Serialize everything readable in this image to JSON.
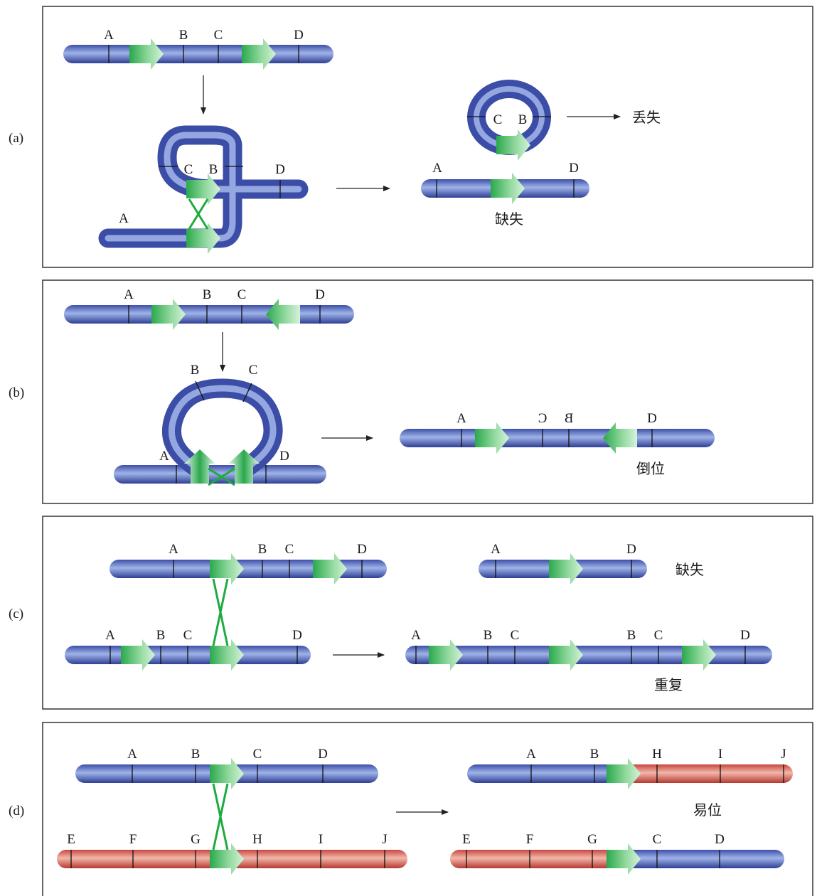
{
  "panels": {
    "a": {
      "label": "(a)",
      "top_markers": [
        "A",
        "B",
        "C",
        "D"
      ],
      "loop_markers": [
        "C",
        "B",
        "D",
        "A"
      ],
      "circle_markers": [
        "C",
        "B"
      ],
      "lost_text": "丢失",
      "product_markers": [
        "A",
        "D"
      ],
      "result_text": "缺失"
    },
    "b": {
      "label": "(b)",
      "top_markers": [
        "A",
        "B",
        "C",
        "D"
      ],
      "loop_markers": [
        "B",
        "C",
        "A",
        "D"
      ],
      "product_markers": [
        "A",
        "C",
        "B",
        "D"
      ],
      "result_text": "倒位"
    },
    "c": {
      "label": "(c)",
      "top_markers": [
        "A",
        "B",
        "C",
        "D"
      ],
      "bottom_markers": [
        "A",
        "B",
        "C",
        "D"
      ],
      "deletion_markers": [
        "A",
        "D"
      ],
      "deletion_text": "缺失",
      "dup_markers": [
        "A",
        "B",
        "C",
        "B",
        "C",
        "D"
      ],
      "dup_text": "重复"
    },
    "d": {
      "label": "(d)",
      "top_markers": [
        "A",
        "B",
        "C",
        "D"
      ],
      "bottom_markers": [
        "E",
        "F",
        "G",
        "H",
        "I",
        "J"
      ],
      "product1_markers": [
        "A",
        "B",
        "H",
        "I",
        "J"
      ],
      "translocation_text": "易位",
      "product2_markers": [
        "E",
        "F",
        "G",
        "C",
        "D"
      ]
    }
  },
  "colors": {
    "blue_chromosome": "#4a63b8",
    "red_chromosome": "#d0564a",
    "green_arrow": "#27a84a",
    "border": "#333333"
  }
}
